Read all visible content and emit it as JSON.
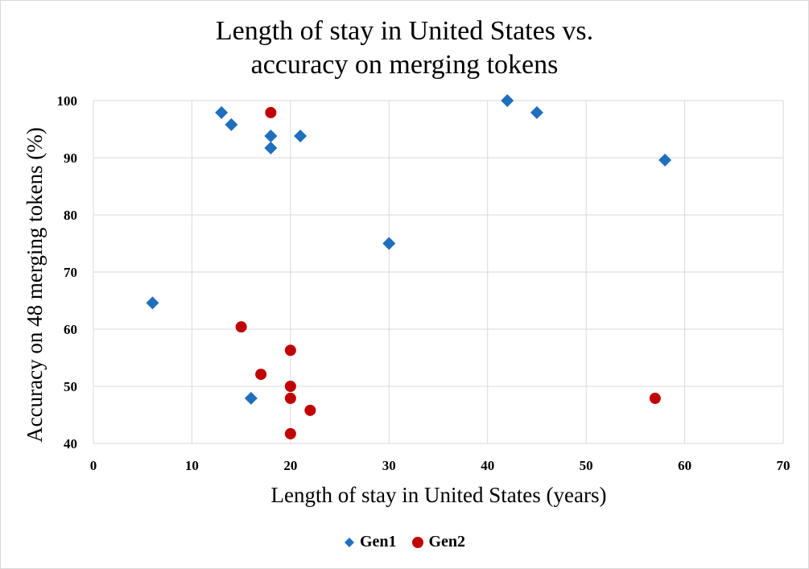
{
  "chart_data": {
    "type": "scatter",
    "title_lines": [
      "Length of stay in United States vs.",
      "accuracy on merging tokens"
    ],
    "xlabel": "Length of stay in United States (years)",
    "ylabel": "Accuracy on 48 merging tokens (%)",
    "xlim": [
      0,
      70
    ],
    "ylim": [
      40,
      100
    ],
    "xticks": [
      0,
      10,
      20,
      30,
      40,
      50,
      60,
      70
    ],
    "yticks": [
      40,
      50,
      60,
      70,
      80,
      90,
      100
    ],
    "grid": true,
    "legend_position": "bottom",
    "series": [
      {
        "name": "Gen1",
        "marker": "diamond",
        "color": "#1f6fbd",
        "points": [
          {
            "x": 6,
            "y": 64.6
          },
          {
            "x": 13,
            "y": 97.9
          },
          {
            "x": 14,
            "y": 95.8
          },
          {
            "x": 16,
            "y": 47.9
          },
          {
            "x": 18,
            "y": 93.8
          },
          {
            "x": 18,
            "y": 91.7
          },
          {
            "x": 21,
            "y": 93.8
          },
          {
            "x": 30,
            "y": 75
          },
          {
            "x": 42,
            "y": 100
          },
          {
            "x": 45,
            "y": 97.9
          },
          {
            "x": 58,
            "y": 89.6
          }
        ]
      },
      {
        "name": "Gen2",
        "marker": "circle",
        "color": "#c00000",
        "points": [
          {
            "x": 15,
            "y": 60.4
          },
          {
            "x": 17,
            "y": 52.1
          },
          {
            "x": 18,
            "y": 97.9
          },
          {
            "x": 20,
            "y": 56.3
          },
          {
            "x": 20,
            "y": 50
          },
          {
            "x": 20,
            "y": 47.9
          },
          {
            "x": 20,
            "y": 41.7
          },
          {
            "x": 22,
            "y": 45.8
          },
          {
            "x": 57,
            "y": 47.9
          }
        ]
      }
    ]
  }
}
